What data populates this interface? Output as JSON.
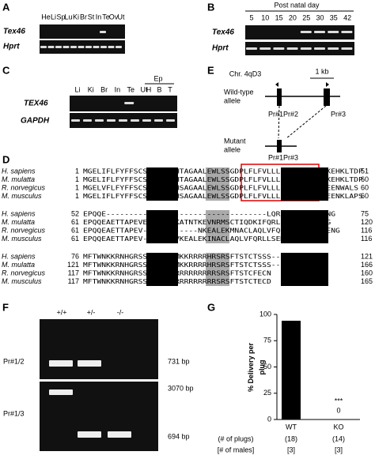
{
  "panel_a": {
    "label": "A",
    "lanes": [
      "He",
      "Li",
      "Sp",
      "Lu",
      "Ki",
      "Br",
      "St",
      "In",
      "Te",
      "Ov",
      "Ut"
    ],
    "rows": [
      "Tex46",
      "Hprt"
    ]
  },
  "panel_b": {
    "label": "B",
    "header": "Post natal day",
    "lanes": [
      "5",
      "10",
      "15",
      "20",
      "25",
      "30",
      "35",
      "42"
    ],
    "rows": [
      "Tex46",
      "Hprt"
    ]
  },
  "panel_c": {
    "label": "C",
    "group": "Ep",
    "lanes": [
      "Li",
      "Ki",
      "Br",
      "In",
      "Te",
      "Ut"
    ],
    "group_lanes": [
      "H",
      "B",
      "T"
    ],
    "rows": [
      "TEX46",
      "GAPDH"
    ]
  },
  "panel_e": {
    "label": "E",
    "locus": "Chr. 4qD3",
    "scale": "1 kb",
    "wild_type": [
      "Wild-type",
      "allele"
    ],
    "mutant": [
      "Mutant",
      "allele"
    ],
    "wt_primers": [
      "Pr#1",
      "Pr#2",
      "Pr#3"
    ],
    "mutant_primers": [
      "Pr#1",
      "Pr#3"
    ]
  },
  "panel_d": {
    "label": "D",
    "blocks": [
      {
        "rows": [
          [
            "H. sapiens",
            "1",
            "MGELIFLFYFFSCSGLLASGHTAGAALEWLSSGDPLFLFVLLLLLLLSNWLVRKEHKLTDP",
            "51"
          ],
          [
            "M. mulatta",
            "1",
            "MGELIFLFYFFSCSGLLASGHTAGAALEWLSSGDPLFLFVLLLLLLLSNWLVRKEHKLTDP",
            "60"
          ],
          [
            "R. norvegicus",
            "1",
            "MGELVFLFYFFSCSGLLASGHSAGAALEWLSSGDPLFLFVLLLLLLLSNWLVREENWALS",
            "60"
          ],
          [
            "M. musculus",
            "1",
            "MGELIFLFYFFSCSGLLTSGHSAGAALEWLSSGDPLFLFVLLLLLLLSNWLVREENKLAPS",
            "60"
          ]
        ]
      },
      {
        "rows": [
          [
            "H. sapiens",
            "52",
            "EPQQE-----------------------------------LQRLLSEMKRKLENG",
            "75"
          ],
          [
            "M. mulatta",
            "61",
            "EPQQEAETTAPEVENNSKSDKATNTKEVNRMSCTIQDKIFQRLLSEMKRKLENG",
            "120"
          ],
          [
            "R. norvegicus",
            "61",
            "EPQQEAETTAPEV--HP--------NKEALEKMNACLAQLVFQRLLSEMKRKLENG",
            "116"
          ],
          [
            "M. musculus",
            "61",
            "EPQQEAETTAPEV--HFNN-VKEALEKINACLAQLVFQRLLSEMKRKLENG",
            "116"
          ]
        ]
      },
      {
        "rows": [
          [
            "H. sapiens",
            "76",
            "MFTWNKKRNHGRSSRHRNFPMKKRRRRHRSRSFTSTCTSSS--",
            "121"
          ],
          [
            "M. mulatta",
            "121",
            "MFTWNKKRNHGRSSRHRNFPMKKRRRRHRSRSFTSTCTSSS--",
            "166"
          ],
          [
            "R. norvegicus",
            "117",
            "MFTWNKKRNHGRSSRHRNFSRRRRRRRRRSRSFTSTCFECN",
            "160"
          ],
          [
            "M. musculus",
            "117",
            "MFTWNKKRNHGRSSRHRNFSRRRRRRRRRSRSFTSTCTECD",
            "165"
          ]
        ]
      }
    ]
  },
  "panel_f": {
    "label": "F",
    "lanes": [
      "+/+",
      "+/-",
      "-/-"
    ],
    "gels": [
      {
        "name": "Pr#1/2",
        "bands": [
          "731 bp"
        ]
      },
      {
        "name": "Pr#1/3",
        "bands": [
          "3070 bp",
          "694 bp"
        ]
      }
    ]
  },
  "panel_g": {
    "label": "G",
    "type": "bar",
    "y_label": [
      "% Delivery per",
      "plug"
    ],
    "categories": [
      "WT",
      "KO"
    ],
    "values": [
      94,
      0
    ],
    "color": "#000000",
    "ylim": [
      0,
      100
    ],
    "yticks": [
      0,
      25,
      50,
      75,
      100
    ],
    "annotation": "***",
    "counts": {
      "plugs_label": "(# of plugs)",
      "plugs": [
        "(18)",
        "(14)"
      ],
      "males_label": "[# of males]",
      "males": [
        "[3]",
        "[3]"
      ]
    }
  }
}
